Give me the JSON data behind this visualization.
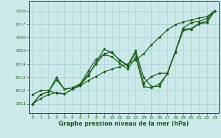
{
  "background_color": "#cce9ea",
  "grid_color": "#aed4d5",
  "line_color": "#1a5c1a",
  "xlabel": "Graphe pression niveau de la mer (hPa)",
  "xlabel_color": "#1a5c1a",
  "xlim": [
    -0.5,
    23.5
  ],
  "ylim": [
    1010.3,
    1018.7
  ],
  "yticks": [
    1011,
    1012,
    1013,
    1014,
    1015,
    1016,
    1017,
    1018
  ],
  "xticks": [
    0,
    1,
    2,
    3,
    4,
    5,
    6,
    7,
    8,
    9,
    10,
    11,
    12,
    13,
    14,
    15,
    16,
    17,
    18,
    19,
    20,
    21,
    22,
    23
  ],
  "line1_x": [
    0,
    1,
    2,
    3,
    4,
    5,
    6,
    7,
    8,
    9,
    10,
    11,
    12,
    13,
    14,
    15,
    16,
    17,
    18,
    19,
    20,
    21,
    22,
    23
  ],
  "line1_y": [
    1011.7,
    1012.0,
    1012.0,
    1011.8,
    1011.75,
    1012.1,
    1012.4,
    1013.1,
    1014.1,
    1015.1,
    1014.85,
    1014.3,
    1013.9,
    1015.0,
    1013.0,
    1012.3,
    1012.3,
    1013.3,
    1014.9,
    1016.7,
    1017.1,
    1017.2,
    1017.4,
    1018.0
  ],
  "line2_x": [
    0,
    1,
    2,
    3,
    4,
    5,
    6,
    7,
    8,
    9,
    10,
    11,
    12,
    13,
    14,
    15,
    16,
    17,
    18,
    19,
    20,
    21,
    22,
    23
  ],
  "line2_y": [
    1011.0,
    1011.7,
    1011.9,
    1012.8,
    1012.1,
    1012.2,
    1012.5,
    1013.2,
    1014.0,
    1014.75,
    1014.9,
    1014.25,
    1013.85,
    1014.8,
    1012.55,
    1013.05,
    1013.3,
    1013.3,
    1014.9,
    1016.6,
    1016.65,
    1017.05,
    1017.2,
    1018.0
  ],
  "line3_x": [
    0,
    1,
    2,
    3,
    4,
    5,
    6,
    7,
    8,
    9,
    10,
    11,
    12,
    13,
    14,
    15,
    16,
    17,
    18,
    19,
    20,
    21,
    22,
    23
  ],
  "line3_y": [
    1011.0,
    1011.7,
    1011.9,
    1013.0,
    1012.1,
    1012.2,
    1012.5,
    1013.45,
    1014.35,
    1014.7,
    1014.55,
    1014.05,
    1013.6,
    1014.5,
    1012.3,
    1012.2,
    1012.5,
    1013.25,
    1014.85,
    1016.5,
    1016.6,
    1017.0,
    1017.1,
    1018.0
  ],
  "line4_x": [
    0,
    1,
    2,
    3,
    4,
    5,
    6,
    7,
    8,
    9,
    10,
    11,
    12,
    13,
    14,
    15,
    16,
    17,
    18,
    19,
    20,
    21,
    22,
    23
  ],
  "line4_y": [
    1011.0,
    1011.4,
    1011.7,
    1011.85,
    1011.75,
    1012.1,
    1012.35,
    1012.75,
    1013.05,
    1013.4,
    1013.6,
    1013.8,
    1014.0,
    1014.3,
    1014.75,
    1015.45,
    1016.0,
    1016.55,
    1016.95,
    1017.15,
    1017.3,
    1017.45,
    1017.55,
    1018.0
  ]
}
